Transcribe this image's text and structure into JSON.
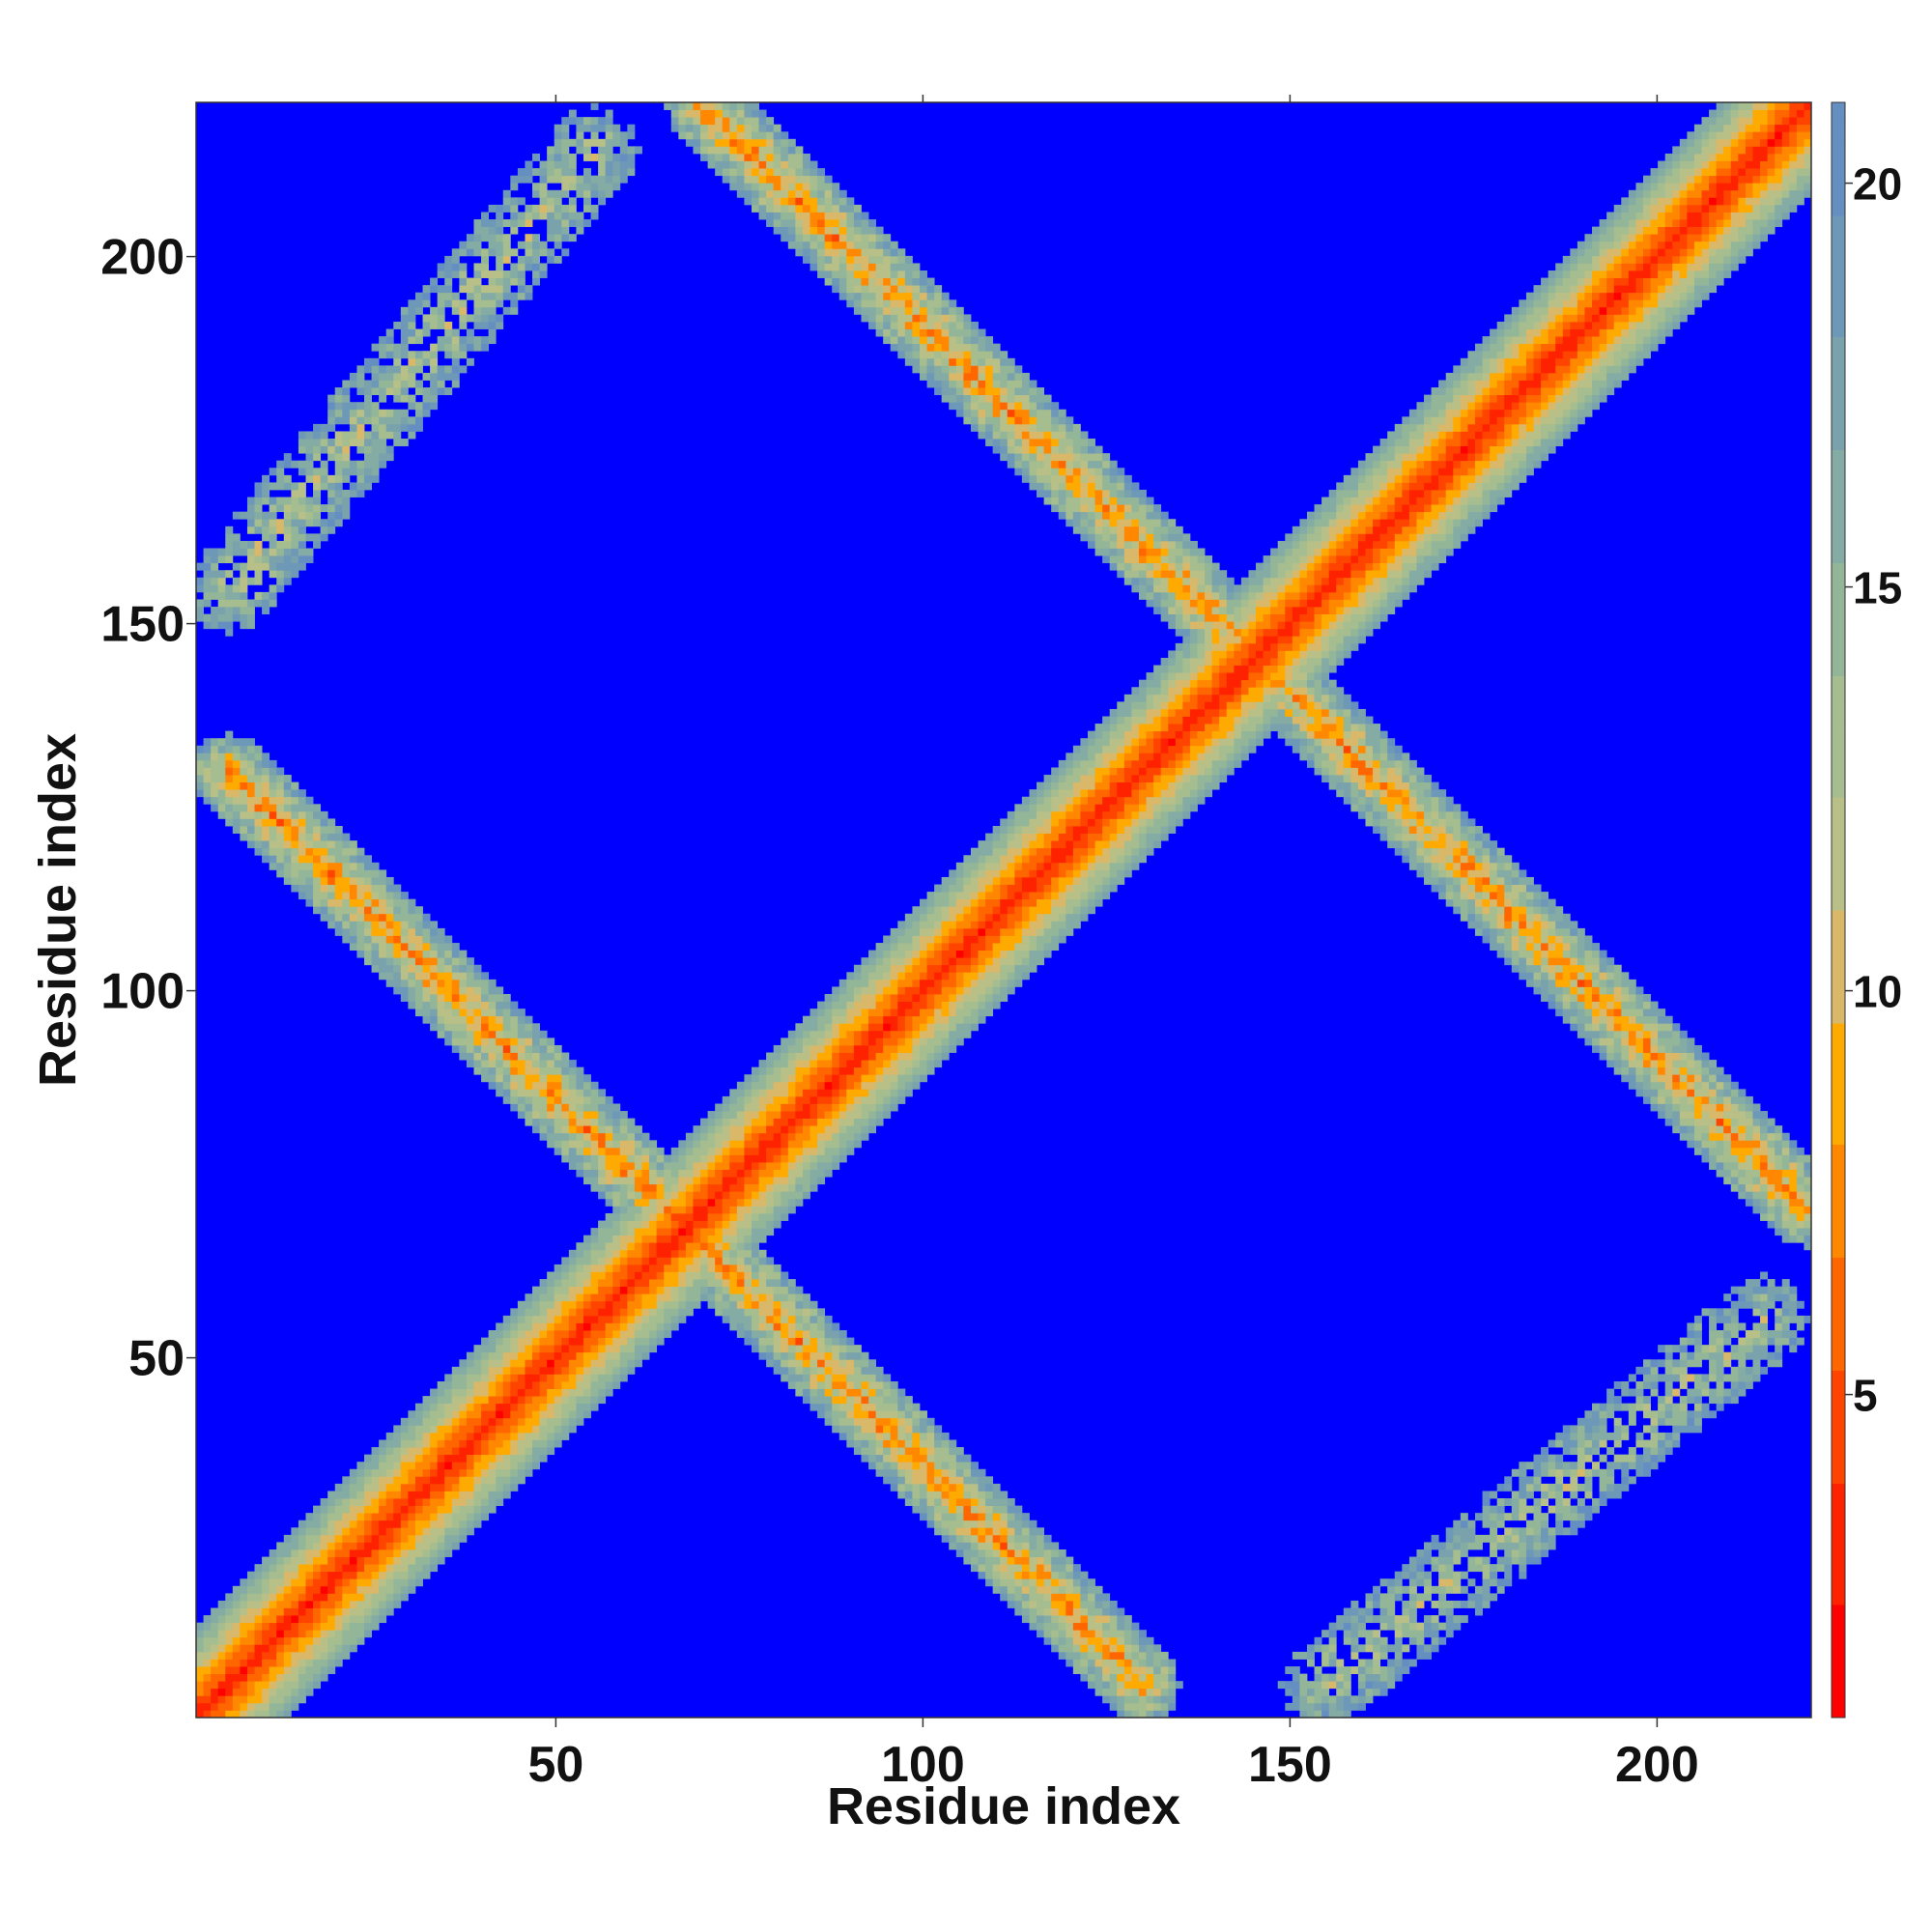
{
  "chart_data": {
    "type": "heatmap",
    "title": "",
    "xlabel": "Residue index",
    "ylabel": "Residue index",
    "n_residues": 221,
    "xlim": [
      1,
      221
    ],
    "ylim": [
      1,
      221
    ],
    "x_ticks": [
      50,
      100,
      150,
      200
    ],
    "y_ticks": [
      50,
      100,
      150,
      200
    ],
    "x_tick_labels": [
      "50",
      "100",
      "150",
      "200"
    ],
    "y_tick_labels": [
      "50",
      "100",
      "150",
      "200"
    ],
    "colorbar": {
      "range": [
        1,
        21
      ],
      "ticks": [
        5,
        10,
        15,
        20
      ],
      "tick_labels": [
        "5",
        "10",
        "15",
        "20"
      ],
      "colors": [
        "#ff0000",
        "#ff2200",
        "#ff4400",
        "#ff6600",
        "#ff8800",
        "#ffaa00",
        "#d9b86a",
        "#b8c088",
        "#a5bd8f",
        "#94b698",
        "#84aca4",
        "#79a2ad",
        "#6e98b8",
        "#658fc1",
        "#0000ff"
      ],
      "saturated_color": "#0000ff",
      "saturation_value": 21
    },
    "features": [
      {
        "type": "diagonal",
        "description": "local contacts",
        "from": [
          1,
          1
        ],
        "to": [
          221,
          221
        ],
        "core_value": 3,
        "half_width_residues": 9
      },
      {
        "type": "anti-diagonal",
        "description": "antiparallel contact band",
        "from": [
          5,
          130
        ],
        "to": [
          70,
          65
        ],
        "core_value": 8,
        "half_width_residues": 5
      },
      {
        "type": "anti-diagonal",
        "description": "antiparallel contact band",
        "from": [
          65,
          70
        ],
        "to": [
          130,
          5
        ],
        "core_value": 8,
        "half_width_residues": 5
      },
      {
        "type": "anti-diagonal",
        "description": "antiparallel contact band",
        "from": [
          70,
          221
        ],
        "to": [
          143,
          148
        ],
        "core_value": 8,
        "half_width_residues": 5
      },
      {
        "type": "anti-diagonal",
        "description": "antiparallel contact band",
        "from": [
          148,
          143
        ],
        "to": [
          221,
          70
        ],
        "core_value": 8,
        "half_width_residues": 5
      },
      {
        "type": "parallel",
        "description": "sparse parallel contact band",
        "from": [
          5,
          155
        ],
        "to": [
          55,
          215
        ],
        "core_value": 13,
        "half_width_residues": 6
      },
      {
        "type": "parallel",
        "description": "sparse parallel contact band",
        "from": [
          155,
          5
        ],
        "to": [
          215,
          55
        ],
        "core_value": 13,
        "half_width_residues": 6
      }
    ]
  }
}
